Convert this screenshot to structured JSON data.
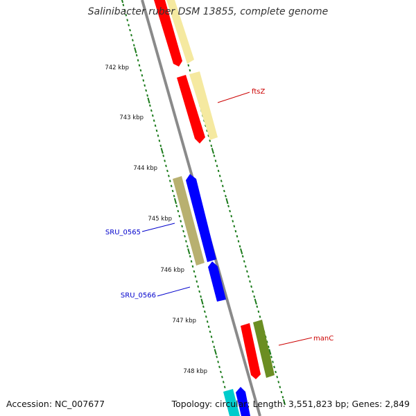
{
  "title": "Salinibacter ruber DSM 13855, complete genome",
  "footer": {
    "accession": "Accession: NC_007677",
    "summary": "Topology: circular; Length: 3,551,823 bp; Genes: 2,849"
  },
  "tick_labels": [
    "742 kbp",
    "743 kbp",
    "744 kbp",
    "745 kbp",
    "746 kbp",
    "747 kbp",
    "748 kbp"
  ],
  "gene_labels": [
    {
      "name": "ftsZ",
      "color": "#cc0000"
    },
    {
      "name": "SRU_0565",
      "color": "#0000cc"
    },
    {
      "name": "SRU_0566",
      "color": "#0000cc"
    },
    {
      "name": "manC",
      "color": "#cc0000"
    }
  ],
  "colors": {
    "backbone": "#8a8a8a",
    "tick": "#1a7a1a",
    "cds_forward": "#ff0000",
    "cds_reverse": "#0000ff",
    "feature_pale_yellow": "#f5e9a0",
    "feature_khaki": "#b8b070",
    "feature_olive": "#6b8e23",
    "feature_cyan": "#00cccc"
  }
}
